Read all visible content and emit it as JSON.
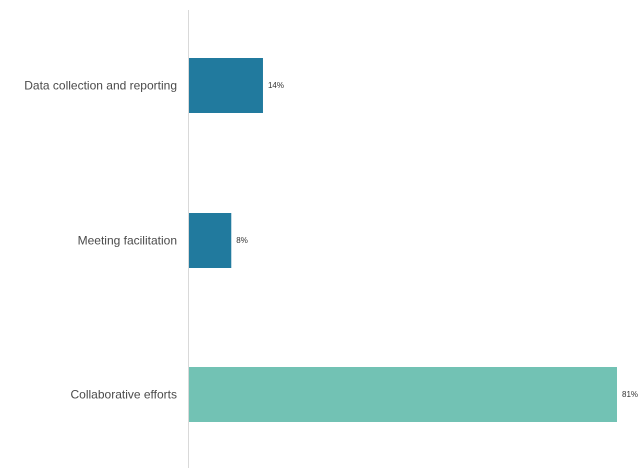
{
  "chart_data": {
    "type": "bar",
    "orientation": "horizontal",
    "categories": [
      "Data collection and reporting",
      "Meeting facilitation",
      "Collaborative efforts"
    ],
    "values": [
      14,
      8,
      81
    ],
    "value_labels": [
      "14%",
      "8%",
      "81%"
    ],
    "unit": "%",
    "xlim": [
      0,
      81
    ],
    "grid": false,
    "colors": [
      "#217a9e",
      "#217a9e",
      "#72c2b4"
    ],
    "axis_color": "#d9d9d9"
  }
}
